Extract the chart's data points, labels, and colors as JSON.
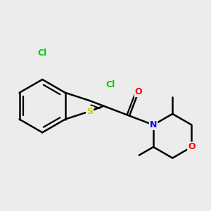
{
  "background_color": "#ececec",
  "bond_color": "#000000",
  "atom_colors": {
    "Cl": "#00cc00",
    "S": "#cccc00",
    "N": "#0000ff",
    "O": "#ff0000",
    "C": "#000000"
  },
  "bond_width": 1.8,
  "figsize": [
    3.0,
    3.0
  ],
  "dpi": 100
}
